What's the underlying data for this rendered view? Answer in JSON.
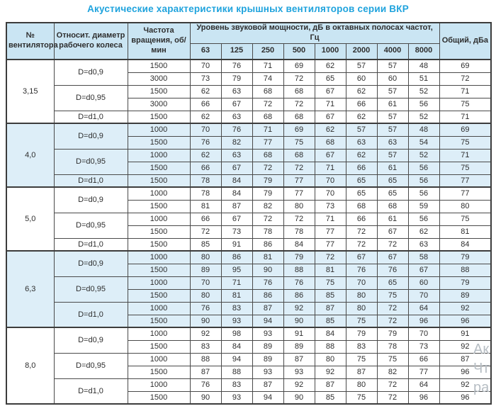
{
  "title": "Акустические характеристики крышных вентиляторов серии ВКР",
  "colors": {
    "title": "#1fa3dd",
    "header_bg": "#cae5f3",
    "band_bg": "#ddeef8",
    "border": "#4a4a4a"
  },
  "table": {
    "headers": {
      "fan_number": "№ вентилятора",
      "diameter": "Относит. диаметр рабочего колеса",
      "speed": "Частота вращения, об/мин",
      "spl_group": "Уровень звуковой мощности, дБ в октавных полосах частот, Гц",
      "octave_bands": [
        "63",
        "125",
        "250",
        "500",
        "1000",
        "2000",
        "4000",
        "8000"
      ],
      "total": "Общий, дБа"
    },
    "groups": [
      {
        "fan": "3,15",
        "shaded": false,
        "subgroups": [
          {
            "diameter": "D=d0,9",
            "rows": [
              {
                "speed": "1500",
                "values": [
                  70,
                  76,
                  71,
                  69,
                  62,
                  57,
                  57,
                  48
                ],
                "total": 69
              },
              {
                "speed": "3000",
                "values": [
                  73,
                  79,
                  74,
                  72,
                  65,
                  60,
                  60,
                  51
                ],
                "total": 72
              }
            ]
          },
          {
            "diameter": "D=d0,95",
            "rows": [
              {
                "speed": "1500",
                "values": [
                  62,
                  63,
                  68,
                  68,
                  67,
                  62,
                  57,
                  52
                ],
                "total": 71
              },
              {
                "speed": "3000",
                "values": [
                  66,
                  67,
                  72,
                  72,
                  71,
                  66,
                  61,
                  56
                ],
                "total": 75
              }
            ]
          },
          {
            "diameter": "D=d1,0",
            "rows": [
              {
                "speed": "1500",
                "values": [
                  62,
                  63,
                  68,
                  68,
                  67,
                  62,
                  57,
                  52
                ],
                "total": 71
              }
            ]
          }
        ]
      },
      {
        "fan": "4,0",
        "shaded": true,
        "subgroups": [
          {
            "diameter": "D=d0,9",
            "rows": [
              {
                "speed": "1000",
                "values": [
                  70,
                  76,
                  71,
                  69,
                  62,
                  57,
                  57,
                  48
                ],
                "total": 69
              },
              {
                "speed": "1500",
                "values": [
                  76,
                  82,
                  77,
                  75,
                  68,
                  63,
                  63,
                  54
                ],
                "total": 75
              }
            ]
          },
          {
            "diameter": "D=d0,95",
            "rows": [
              {
                "speed": "1000",
                "values": [
                  62,
                  63,
                  68,
                  68,
                  67,
                  62,
                  57,
                  52
                ],
                "total": 71
              },
              {
                "speed": "1500",
                "values": [
                  66,
                  67,
                  72,
                  72,
                  71,
                  66,
                  61,
                  56
                ],
                "total": 75
              }
            ]
          },
          {
            "diameter": "D=d1,0",
            "rows": [
              {
                "speed": "1500",
                "values": [
                  78,
                  84,
                  79,
                  77,
                  70,
                  65,
                  65,
                  56
                ],
                "total": 77
              }
            ]
          }
        ]
      },
      {
        "fan": "5,0",
        "shaded": false,
        "subgroups": [
          {
            "diameter": "D=d0,9",
            "rows": [
              {
                "speed": "1000",
                "values": [
                  78,
                  84,
                  79,
                  77,
                  70,
                  65,
                  65,
                  56
                ],
                "total": 77
              },
              {
                "speed": "1500",
                "values": [
                  81,
                  87,
                  82,
                  80,
                  73,
                  68,
                  68,
                  59
                ],
                "total": 80
              }
            ]
          },
          {
            "diameter": "D=d0,95",
            "rows": [
              {
                "speed": "1000",
                "values": [
                  66,
                  67,
                  72,
                  72,
                  71,
                  66,
                  61,
                  56
                ],
                "total": 75
              },
              {
                "speed": "1500",
                "values": [
                  72,
                  73,
                  78,
                  78,
                  77,
                  72,
                  67,
                  62
                ],
                "total": 81
              }
            ]
          },
          {
            "diameter": "D=d1,0",
            "rows": [
              {
                "speed": "1500",
                "values": [
                  85,
                  91,
                  86,
                  84,
                  77,
                  72,
                  72,
                  63
                ],
                "total": 84
              }
            ]
          }
        ]
      },
      {
        "fan": "6,3",
        "shaded": true,
        "subgroups": [
          {
            "diameter": "D=d0,9",
            "rows": [
              {
                "speed": "1000",
                "values": [
                  80,
                  86,
                  81,
                  79,
                  72,
                  67,
                  67,
                  58
                ],
                "total": 79
              },
              {
                "speed": "1500",
                "values": [
                  89,
                  95,
                  90,
                  88,
                  81,
                  76,
                  76,
                  67
                ],
                "total": 88
              }
            ]
          },
          {
            "diameter": "D=d0,95",
            "rows": [
              {
                "speed": "1000",
                "values": [
                  70,
                  71,
                  76,
                  76,
                  75,
                  70,
                  65,
                  60
                ],
                "total": 79
              },
              {
                "speed": "1500",
                "values": [
                  80,
                  81,
                  86,
                  86,
                  85,
                  80,
                  75,
                  70
                ],
                "total": 89
              }
            ]
          },
          {
            "diameter": "D=d1,0",
            "rows": [
              {
                "speed": "1000",
                "values": [
                  76,
                  83,
                  87,
                  92,
                  87,
                  80,
                  72,
                  64
                ],
                "total": 92
              },
              {
                "speed": "1500",
                "values": [
                  90,
                  93,
                  94,
                  90,
                  85,
                  75,
                  72,
                  96
                ],
                "total": 96
              }
            ]
          }
        ]
      },
      {
        "fan": "8,0",
        "shaded": false,
        "subgroups": [
          {
            "diameter": "D=d0,9",
            "rows": [
              {
                "speed": "1000",
                "values": [
                  92,
                  98,
                  93,
                  91,
                  84,
                  79,
                  79,
                  70
                ],
                "total": 91
              },
              {
                "speed": "1500",
                "values": [
                  83,
                  84,
                  89,
                  89,
                  88,
                  83,
                  78,
                  73
                ],
                "total": 92
              }
            ]
          },
          {
            "diameter": "D=d0,95",
            "rows": [
              {
                "speed": "1000",
                "values": [
                  88,
                  94,
                  89,
                  87,
                  80,
                  75,
                  75,
                  66
                ],
                "total": 87
              },
              {
                "speed": "1500",
                "values": [
                  87,
                  88,
                  93,
                  93,
                  92,
                  87,
                  82,
                  77
                ],
                "total": 96
              }
            ]
          },
          {
            "diameter": "D=d1,0",
            "rows": [
              {
                "speed": "1000",
                "values": [
                  76,
                  83,
                  87,
                  92,
                  87,
                  80,
                  72,
                  64
                ],
                "total": 92
              },
              {
                "speed": "1500",
                "values": [
                  90,
                  93,
                  94,
                  90,
                  85,
                  75,
                  72,
                  96
                ],
                "total": 96
              }
            ]
          }
        ]
      }
    ]
  },
  "watermark": {
    "lines": [
      "Ак",
      "Чт",
      "ра"
    ]
  }
}
